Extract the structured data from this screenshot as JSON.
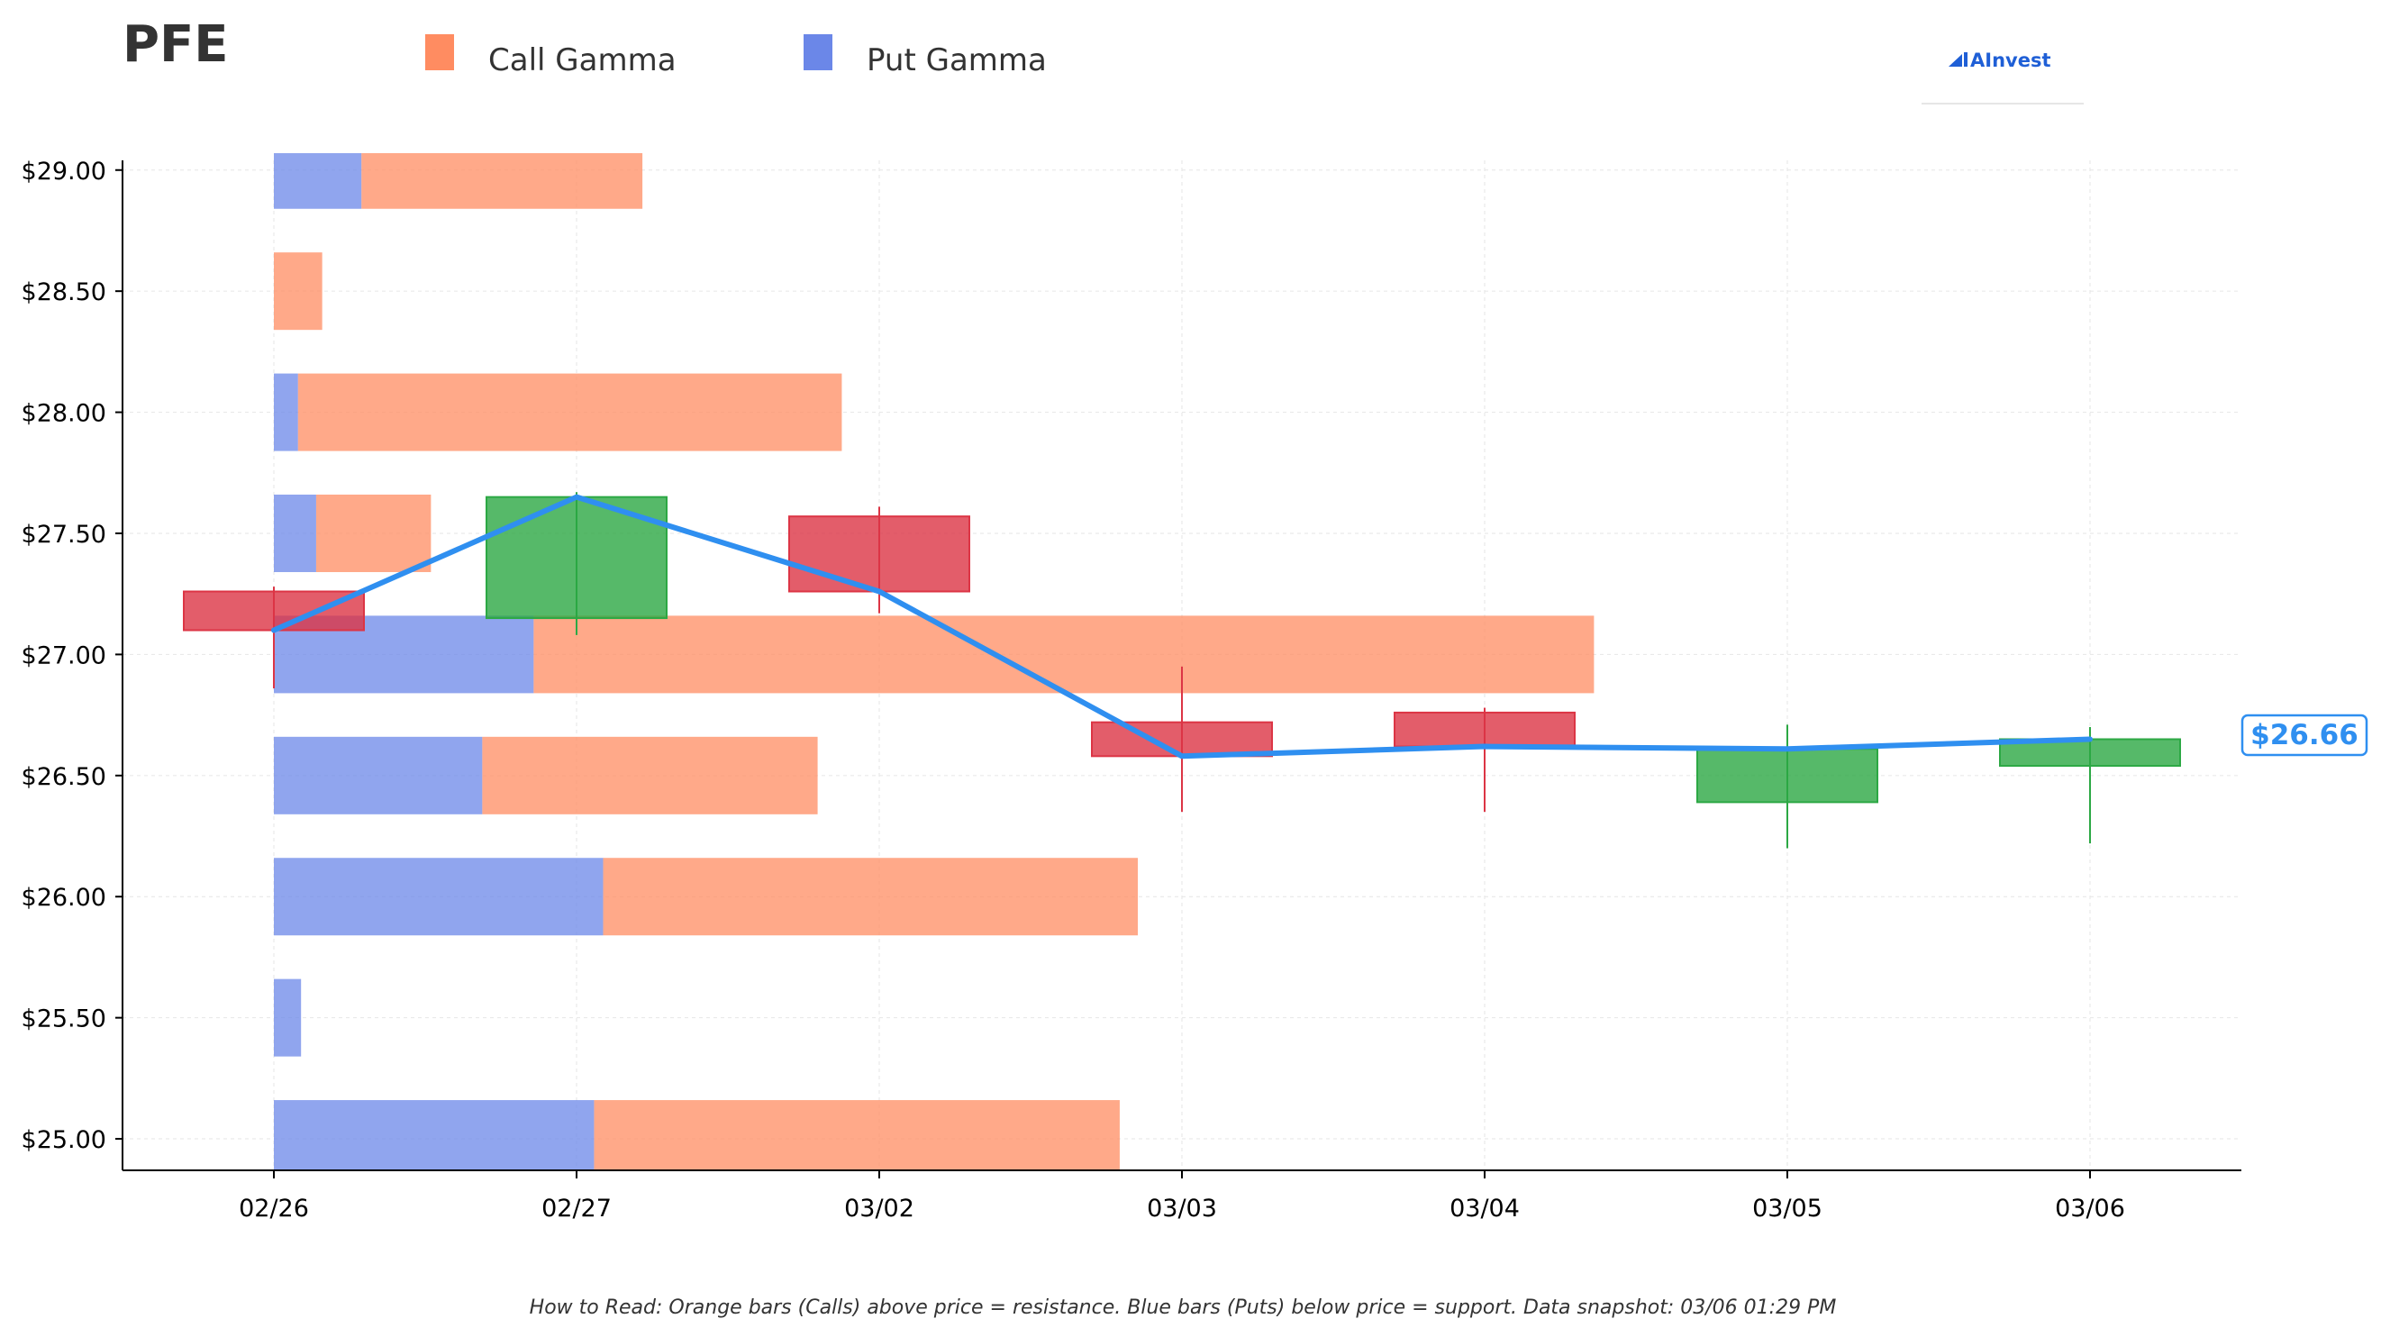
{
  "chart_data": {
    "type": "bar",
    "title": "PFE",
    "legend": {
      "placement": "top",
      "entries": [
        {
          "name": "Call Gamma",
          "color": "#ff8c61"
        },
        {
          "name": "Put Gamma",
          "color": "#6b87e8"
        }
      ]
    },
    "brand": "AInvest",
    "colors": {
      "call": "#ff8c61",
      "put": "#6b87e8",
      "up_candle": "#2ca844",
      "down_candle": "#dc3545",
      "price_line": "#2f8ff0"
    },
    "x_categories": [
      "02/26",
      "02/27",
      "03/02",
      "03/03",
      "03/04",
      "03/05",
      "03/06"
    ],
    "ylim": [
      24.87,
      29.04
    ],
    "y_ticks": [
      {
        "value": 25.0,
        "label": "$25.00"
      },
      {
        "value": 25.5,
        "label": "$25.50"
      },
      {
        "value": 26.0,
        "label": "$26.00"
      },
      {
        "value": 26.5,
        "label": "$26.50"
      },
      {
        "value": 27.0,
        "label": "$27.00"
      },
      {
        "value": 27.5,
        "label": "$27.50"
      },
      {
        "value": 28.0,
        "label": "$28.00"
      },
      {
        "value": 28.5,
        "label": "$28.50"
      },
      {
        "value": 29.0,
        "label": "$29.00"
      }
    ],
    "grid": true,
    "gamma_by_strike": [
      {
        "strike": 29.0,
        "put": 0.29,
        "call": 0.93
      },
      {
        "strike": 28.5,
        "put": 0.0,
        "call": 0.16
      },
      {
        "strike": 28.0,
        "put": 0.08,
        "call": 1.8
      },
      {
        "strike": 27.5,
        "put": 0.14,
        "call": 0.38
      },
      {
        "strike": 27.0,
        "put": 0.86,
        "call": 3.51
      },
      {
        "strike": 26.5,
        "put": 0.69,
        "call": 1.11
      },
      {
        "strike": 26.0,
        "put": 1.09,
        "call": 1.77
      },
      {
        "strike": 25.5,
        "put": 0.09,
        "call": 0.0
      },
      {
        "strike": 25.0,
        "put": 1.06,
        "call": 1.74
      }
    ],
    "candles": [
      {
        "date": "02/26",
        "open": 27.26,
        "close": 27.1,
        "high": 27.28,
        "low": 26.86
      },
      {
        "date": "02/27",
        "open": 27.15,
        "close": 27.65,
        "high": 27.67,
        "low": 27.08
      },
      {
        "date": "03/02",
        "open": 27.57,
        "close": 27.26,
        "high": 27.61,
        "low": 27.17
      },
      {
        "date": "03/03",
        "open": 26.72,
        "close": 26.58,
        "high": 26.95,
        "low": 26.35
      },
      {
        "date": "03/04",
        "open": 26.76,
        "close": 26.62,
        "high": 26.78,
        "low": 26.35
      },
      {
        "date": "03/05",
        "open": 26.39,
        "close": 26.61,
        "high": 26.71,
        "low": 26.2
      },
      {
        "date": "03/06",
        "open": 26.54,
        "close": 26.65,
        "high": 26.7,
        "low": 26.22
      }
    ],
    "close_line": [
      27.1,
      27.65,
      27.26,
      26.58,
      26.62,
      26.61,
      26.65
    ],
    "current_price_label": "$26.66",
    "current_price": 26.66,
    "footnote": "How to Read: Orange bars (Calls) above price = resistance. Blue bars (Puts) below price = support. Data snapshot: 03/06 01:29 PM"
  }
}
